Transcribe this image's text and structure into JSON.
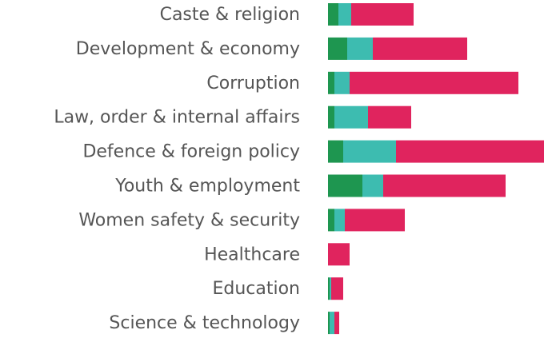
{
  "chart_data": {
    "type": "stacked-bar-horizontal",
    "categories": [
      "Caste & religion",
      "Development & economy",
      "Corruption",
      "Law, order & internal affairs",
      "Defence & foreign policy",
      "Youth & employment",
      "Women safety & security",
      "Healthcare",
      "Education",
      "Science & technology"
    ],
    "series": [
      {
        "color": "#1e9650",
        "values": [
          13,
          24,
          8,
          8,
          19,
          43,
          8,
          0,
          2,
          2
        ]
      },
      {
        "color": "#3dbcb0",
        "values": [
          16,
          32,
          19,
          42,
          66,
          26,
          13,
          0,
          2,
          6
        ]
      },
      {
        "color": "#e0245e",
        "values": [
          78,
          118,
          211,
          54,
          185,
          153,
          75,
          27,
          15,
          6
        ]
      }
    ],
    "xlim": [
      0,
      270
    ]
  }
}
